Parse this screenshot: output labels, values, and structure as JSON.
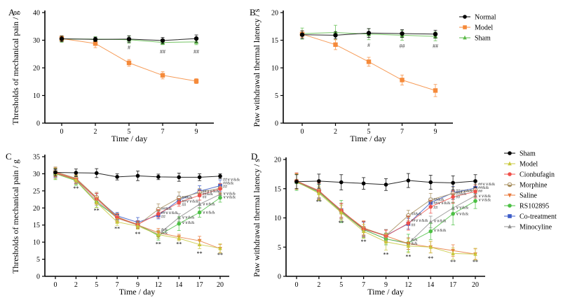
{
  "chart_data": [
    {
      "id": "A",
      "type": "line",
      "panel_label": "A",
      "title": "",
      "xlabel": "Time / day",
      "ylabel": "Thresholds of mechanical pain / g",
      "categories": [
        "0",
        "2",
        "5",
        "7",
        "9"
      ],
      "ylim": [
        0,
        40
      ],
      "yticks": [
        0,
        10,
        20,
        30,
        40
      ],
      "grid": false,
      "legend_position": "none",
      "series": [
        {
          "name": "Normal",
          "color": "#000000",
          "marker": "circle",
          "values": [
            30.5,
            30.3,
            30.4,
            29.9,
            30.6
          ],
          "errors": [
            1.0,
            0.8,
            1.2,
            1.1,
            1.3
          ]
        },
        {
          "name": "Model",
          "color": "#F58A3A",
          "marker": "square",
          "values": [
            30.6,
            28.8,
            21.8,
            17.3,
            15.2
          ],
          "errors": [
            1.0,
            1.5,
            1.2,
            1.3,
            0.9
          ]
        },
        {
          "name": "Sham",
          "color": "#5DBB4A",
          "marker": "triangle",
          "values": [
            30.4,
            30.4,
            30.2,
            29.2,
            29.4
          ],
          "errors": [
            1.2,
            0.9,
            1.3,
            0.8,
            1.0
          ]
        }
      ],
      "annotations": [
        {
          "x": "5",
          "text": "#",
          "y": 27.5
        },
        {
          "x": "7",
          "text": "##",
          "y": 26.0
        },
        {
          "x": "9",
          "text": "##",
          "y": 26.0
        }
      ]
    },
    {
      "id": "B",
      "type": "line",
      "panel_label": "B",
      "title": "",
      "xlabel": "Time / day",
      "ylabel": "Paw withdrawal thermal latency / s",
      "categories": [
        "0",
        "2",
        "5",
        "7",
        "9"
      ],
      "ylim": [
        0,
        20
      ],
      "yticks": [
        0,
        5,
        10,
        15,
        20
      ],
      "grid": false,
      "legend_position": "right",
      "series": [
        {
          "name": "Normal",
          "color": "#000000",
          "marker": "circle",
          "values": [
            16.0,
            15.9,
            16.3,
            16.2,
            16.1
          ],
          "errors": [
            0.7,
            0.6,
            0.8,
            0.7,
            0.7
          ]
        },
        {
          "name": "Model",
          "color": "#F58A3A",
          "marker": "square",
          "values": [
            16.1,
            14.2,
            11.1,
            7.8,
            5.9
          ],
          "errors": [
            0.6,
            0.9,
            0.8,
            0.9,
            1.1
          ]
        },
        {
          "name": "Sham",
          "color": "#5DBB4A",
          "marker": "triangle",
          "values": [
            16.2,
            16.4,
            16.1,
            15.9,
            15.7
          ],
          "errors": [
            1.0,
            1.3,
            1.0,
            0.9,
            0.8
          ]
        }
      ],
      "annotations": [
        {
          "x": "5",
          "text": "#",
          "y": 14.2
        },
        {
          "x": "7",
          "text": "##",
          "y": 14.0
        },
        {
          "x": "9",
          "text": "##",
          "y": 14.0
        }
      ]
    },
    {
      "id": "C",
      "type": "line",
      "panel_label": "C",
      "title": "",
      "xlabel": "Time / day",
      "ylabel": "Thresholds of mechanical pain / g",
      "categories": [
        "0",
        "2",
        "5",
        "7",
        "9",
        "12",
        "14",
        "17",
        "20"
      ],
      "ylim": [
        0,
        35
      ],
      "yticks": [
        0,
        5,
        10,
        15,
        20,
        25,
        30,
        35
      ],
      "grid": false,
      "legend_position": "right",
      "series": [
        {
          "name": "Sham",
          "color": "#000000",
          "marker": "circle",
          "values": [
            30.4,
            30.3,
            30.2,
            29.1,
            29.4,
            29.1,
            29.0,
            29.0,
            29.3
          ],
          "errors": [
            1.0,
            1.1,
            1.3,
            0.9,
            1.4,
            0.8,
            1.2,
            1.0,
            0.7
          ]
        },
        {
          "name": "Model",
          "color": "#C8C83C",
          "marker": "triangle",
          "values": [
            30.0,
            28.2,
            21.6,
            15.9,
            14.7,
            12.2,
            11.1,
            9.3,
            8.2
          ],
          "errors": [
            1.5,
            1.3,
            1.5,
            1.0,
            0.9,
            1.1,
            0.7,
            1.2,
            1.3
          ]
        },
        {
          "name": "Cionbufagin",
          "color": "#F0504A",
          "marker": "circle",
          "values": [
            30.3,
            28.4,
            22.7,
            17.2,
            15.2,
            18.3,
            21.6,
            23.7,
            25.6
          ],
          "errors": [
            1.2,
            1.1,
            1.6,
            1.1,
            1.0,
            1.2,
            1.1,
            1.4,
            1.5
          ]
        },
        {
          "name": "Morphine",
          "color": "#A89060",
          "marker": "circle-half",
          "values": [
            30.6,
            28.7,
            23.1,
            17.4,
            15.0,
            19.6,
            22.9,
            24.5,
            25.8
          ],
          "errors": [
            1.4,
            1.0,
            1.5,
            1.0,
            1.1,
            1.6,
            1.8,
            1.2,
            1.3
          ]
        },
        {
          "name": "Saline",
          "color": "#E8783A",
          "marker": "triangle-down",
          "values": [
            30.5,
            28.5,
            22.9,
            17.1,
            15.0,
            12.8,
            11.5,
            10.4,
            8.1
          ],
          "errors": [
            1.3,
            1.2,
            1.4,
            1.2,
            1.0,
            1.2,
            0.8,
            1.3,
            1.2
          ]
        },
        {
          "name": "RS102895",
          "color": "#4CC044",
          "marker": "circle",
          "values": [
            30.0,
            28.0,
            21.6,
            17.3,
            15.1,
            11.9,
            15.4,
            18.7,
            23.0
          ],
          "errors": [
            1.7,
            1.4,
            1.4,
            1.1,
            1.0,
            1.3,
            2.0,
            1.4,
            1.3
          ]
        },
        {
          "name": "Co-treatment",
          "color": "#3C5CC8",
          "marker": "square",
          "values": [
            30.1,
            28.3,
            22.8,
            17.7,
            15.8,
            17.9,
            22.3,
            24.9,
            26.5
          ],
          "errors": [
            1.2,
            1.2,
            1.4,
            1.0,
            1.4,
            1.1,
            1.2,
            1.6,
            1.7
          ]
        },
        {
          "name": "Minocyline",
          "color": "#909090",
          "marker": "triangle",
          "values": [
            30.2,
            28.1,
            22.1,
            17.0,
            15.0,
            12.3,
            17.2,
            21.1,
            24.0
          ],
          "errors": [
            1.4,
            1.2,
            1.3,
            1.2,
            1.1,
            1.2,
            1.1,
            1.2,
            1.2
          ]
        }
      ],
      "annotations": [
        {
          "x": "2",
          "text": "**",
          "y": 25.8,
          "type": "star"
        },
        {
          "x": "5",
          "text": "**",
          "y": 19.3,
          "type": "star"
        },
        {
          "x": "7",
          "text": "**",
          "y": 14.0,
          "type": "star"
        },
        {
          "x": "9",
          "text": "**",
          "y": 12.5,
          "type": "star"
        },
        {
          "x": "12",
          "text": "**",
          "y": 9.5,
          "type": "star"
        },
        {
          "x": "14",
          "text": "**",
          "y": 9.5,
          "type": "star"
        },
        {
          "x": "17",
          "text": "**",
          "y": 6.8,
          "type": "star"
        },
        {
          "x": "20",
          "text": "**",
          "y": 6.3,
          "type": "star"
        },
        {
          "x": "12",
          "text": "##&&",
          "y": 19.9
        },
        {
          "x": "12",
          "text": "##∨∨&&",
          "y": 18.6
        },
        {
          "x": "12",
          "text": "##",
          "y": 17.5
        },
        {
          "x": "12",
          "text": "&&",
          "y": 13.7
        },
        {
          "x": "12",
          "text": "&&",
          "y": 12.8
        },
        {
          "x": "14",
          "text": "##&&",
          "y": 23.1
        },
        {
          "x": "14",
          "text": "##∨∨&&",
          "y": 22.0
        },
        {
          "x": "14",
          "text": "##",
          "y": 21.0
        },
        {
          "x": "14",
          "text": "∨∨&&",
          "y": 17.3
        },
        {
          "x": "14",
          "text": "∨∨&&",
          "y": 15.8
        },
        {
          "x": "17",
          "text": "##∨∨&&",
          "y": 25.0
        },
        {
          "x": "17",
          "text": "##&&",
          "y": 24.2
        },
        {
          "x": "17",
          "text": "##",
          "y": 23.2
        },
        {
          "x": "17",
          "text": "∨∨&&",
          "y": 21.2
        },
        {
          "x": "17",
          "text": "∨∨&&",
          "y": 18.7
        },
        {
          "x": "20",
          "text": "##∨∨&&",
          "y": 28.3
        },
        {
          "x": "20",
          "text": "##&&",
          "y": 27.3
        },
        {
          "x": "20",
          "text": "##",
          "y": 26.3
        },
        {
          "x": "20",
          "text": "∨∨&&",
          "y": 24.3
        },
        {
          "x": "20",
          "text": "∨∨&&",
          "y": 23.2
        }
      ]
    },
    {
      "id": "D",
      "type": "line",
      "panel_label": "D",
      "title": "",
      "xlabel": "Time / day",
      "ylabel": "Paw withdrawal thermal latency / s",
      "categories": [
        "0",
        "2",
        "5",
        "7",
        "9",
        "12",
        "14",
        "17",
        "20"
      ],
      "ylim": [
        0,
        20
      ],
      "yticks": [
        0,
        5,
        10,
        15,
        20
      ],
      "grid": false,
      "legend_position": "right",
      "series": [
        {
          "name": "Sham",
          "color": "#000000",
          "marker": "circle",
          "values": [
            16.2,
            16.3,
            16.1,
            15.9,
            15.7,
            16.4,
            16.1,
            16.0,
            16.3
          ],
          "errors": [
            1.2,
            1.2,
            1.3,
            1.0,
            1.0,
            1.2,
            1.2,
            1.2,
            1.1
          ]
        },
        {
          "name": "Model",
          "color": "#C8C83C",
          "marker": "triangle",
          "values": [
            16.2,
            14.2,
            10.9,
            7.7,
            5.9,
            5.2,
            5.0,
            3.9,
            3.8
          ],
          "errors": [
            1.3,
            1.2,
            1.3,
            1.2,
            1.4,
            1.2,
            1.0,
            1.0,
            1.0
          ]
        },
        {
          "name": "Cionbufagin",
          "color": "#F0504A",
          "marker": "circle",
          "values": [
            16.3,
            14.6,
            11.3,
            8.1,
            6.9,
            9.1,
            11.9,
            13.6,
            14.5
          ],
          "errors": [
            1.4,
            1.4,
            1.2,
            1.3,
            1.0,
            1.2,
            1.1,
            1.1,
            1.1
          ]
        },
        {
          "name": "Morphine",
          "color": "#A89060",
          "marker": "circle-half",
          "values": [
            16.3,
            14.7,
            11.2,
            8.2,
            7.0,
            10.4,
            13.1,
            14.2,
            14.8
          ],
          "errors": [
            1.4,
            1.2,
            1.3,
            1.2,
            1.0,
            0.9,
            1.1,
            1.1,
            1.0
          ]
        },
        {
          "name": "Saline",
          "color": "#E8783A",
          "marker": "triangle-down",
          "values": [
            16.3,
            14.6,
            11.2,
            8.3,
            6.9,
            5.6,
            5.0,
            4.4,
            3.8
          ],
          "errors": [
            1.3,
            1.4,
            1.3,
            1.2,
            1.0,
            1.0,
            1.0,
            1.0,
            0.9
          ]
        },
        {
          "name": "RS102895",
          "color": "#4CC044",
          "marker": "circle",
          "values": [
            16.1,
            14.4,
            11.1,
            8.0,
            6.4,
            5.7,
            7.7,
            10.7,
            12.9
          ],
          "errors": [
            1.4,
            1.3,
            1.9,
            1.4,
            1.0,
            1.5,
            1.4,
            1.9,
            1.3
          ]
        },
        {
          "name": "Co-treatment",
          "color": "#3C5CC8",
          "marker": "square",
          "values": [
            16.2,
            14.6,
            11.3,
            8.1,
            7.0,
            9.0,
            12.6,
            14.3,
            15.1
          ],
          "errors": [
            1.3,
            1.2,
            1.2,
            1.2,
            1.0,
            0.9,
            0.8,
            1.1,
            1.0
          ]
        },
        {
          "name": "Minocyline",
          "color": "#909090",
          "marker": "triangle",
          "values": [
            16.2,
            14.5,
            11.0,
            8.0,
            6.4,
            5.6,
            9.3,
            11.7,
            13.8
          ],
          "errors": [
            1.3,
            1.2,
            1.2,
            1.3,
            1.0,
            1.0,
            1.0,
            1.0,
            1.0
          ]
        }
      ],
      "annotations": [
        {
          "x": "2",
          "text": "**",
          "y": 12.8,
          "type": "star"
        },
        {
          "x": "5",
          "text": "**",
          "y": 9.2,
          "type": "star"
        },
        {
          "x": "7",
          "text": "**",
          "y": 6.0,
          "type": "star"
        },
        {
          "x": "9",
          "text": "**",
          "y": 3.8,
          "type": "star"
        },
        {
          "x": "12",
          "text": "**",
          "y": 3.4,
          "type": "star"
        },
        {
          "x": "14",
          "text": "**",
          "y": 3.1,
          "type": "star"
        },
        {
          "x": "17",
          "text": "**",
          "y": 2.5,
          "type": "star"
        },
        {
          "x": "20",
          "text": "**",
          "y": 2.5,
          "type": "star"
        },
        {
          "x": "12",
          "text": "##&&",
          "y": 10.7
        },
        {
          "x": "12",
          "text": "##∨∨&&",
          "y": 9.6
        },
        {
          "x": "12",
          "text": "##",
          "y": 8.8
        },
        {
          "x": "12",
          "text": "&&",
          "y": 6.3
        },
        {
          "x": "12",
          "text": "&&",
          "y": 5.6
        },
        {
          "x": "14",
          "text": "##&&",
          "y": 13.2
        },
        {
          "x": "14",
          "text": "##∨∨&&",
          "y": 12.6
        },
        {
          "x": "14",
          "text": "##",
          "y": 11.8
        },
        {
          "x": "14",
          "text": "∨∨&&",
          "y": 9.5
        },
        {
          "x": "14",
          "text": "∨∨&&",
          "y": 7.9
        },
        {
          "x": "17",
          "text": "##∨∨&&",
          "y": 14.7
        },
        {
          "x": "17",
          "text": "##&&",
          "y": 14.2
        },
        {
          "x": "17",
          "text": "##",
          "y": 13.6
        },
        {
          "x": "17",
          "text": "∨∨&&",
          "y": 11.8
        },
        {
          "x": "17",
          "text": "∨∨&&",
          "y": 10.7
        },
        {
          "x": "20",
          "text": "##∨∨&&",
          "y": 15.8
        },
        {
          "x": "20",
          "text": "##&&",
          "y": 15.2
        },
        {
          "x": "20",
          "text": "##",
          "y": 14.6
        },
        {
          "x": "20",
          "text": "∨∨&&",
          "y": 13.8
        },
        {
          "x": "20",
          "text": "∨∨&&",
          "y": 13.1
        }
      ]
    }
  ],
  "legends": {
    "top": [
      {
        "name": "Normal",
        "color": "#000000",
        "marker": "circle"
      },
      {
        "name": "Model",
        "color": "#F58A3A",
        "marker": "square"
      },
      {
        "name": "Sham",
        "color": "#5DBB4A",
        "marker": "triangle"
      }
    ],
    "bottom": [
      {
        "name": "Sham",
        "color": "#000000",
        "marker": "circle"
      },
      {
        "name": "Model",
        "color": "#C8C83C",
        "marker": "triangle"
      },
      {
        "name": "Cionbufagin",
        "color": "#F0504A",
        "marker": "circle"
      },
      {
        "name": "Morphine",
        "color": "#A89060",
        "marker": "circle-half"
      },
      {
        "name": "Saline",
        "color": "#E8783A",
        "marker": "triangle-down"
      },
      {
        "name": "RS102895",
        "color": "#4CC044",
        "marker": "circle"
      },
      {
        "name": "Co-treatment",
        "color": "#3C5CC8",
        "marker": "square"
      },
      {
        "name": "Minocyline",
        "color": "#909090",
        "marker": "triangle"
      }
    ]
  }
}
